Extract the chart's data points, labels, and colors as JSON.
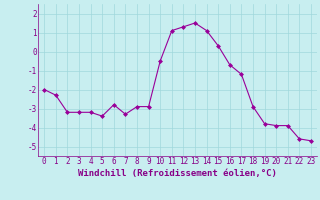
{
  "x": [
    0,
    1,
    2,
    3,
    4,
    5,
    6,
    7,
    8,
    9,
    10,
    11,
    12,
    13,
    14,
    15,
    16,
    17,
    18,
    19,
    20,
    21,
    22,
    23
  ],
  "y": [
    -2.0,
    -2.3,
    -3.2,
    -3.2,
    -3.2,
    -3.4,
    -2.8,
    -3.3,
    -2.9,
    -2.9,
    -0.5,
    1.1,
    1.3,
    1.5,
    1.1,
    0.3,
    -0.7,
    -1.2,
    -2.9,
    -3.8,
    -3.9,
    -3.9,
    -4.6,
    -4.7
  ],
  "line_color": "#990099",
  "marker": "D",
  "marker_size": 2,
  "bg_color": "#c8eef0",
  "grid_color": "#a0d8dc",
  "xlabel": "Windchill (Refroidissement éolien,°C)",
  "xlabel_color": "#880088",
  "tick_color": "#880088",
  "ylim": [
    -5.5,
    2.5
  ],
  "yticks": [
    -5,
    -4,
    -3,
    -2,
    -1,
    0,
    1,
    2
  ],
  "xticks": [
    0,
    1,
    2,
    3,
    4,
    5,
    6,
    7,
    8,
    9,
    10,
    11,
    12,
    13,
    14,
    15,
    16,
    17,
    18,
    19,
    20,
    21,
    22,
    23
  ],
  "label_fontsize": 6.5,
  "tick_fontsize": 5.5
}
